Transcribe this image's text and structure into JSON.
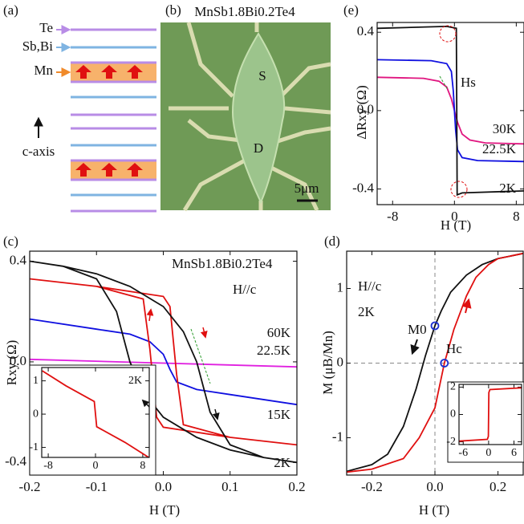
{
  "panel_labels": [
    "(a)",
    "(b)",
    "(c)",
    "(d)",
    "(e)"
  ],
  "schematic": {
    "layers": [
      "Te",
      "Sb,Bi",
      "Mn"
    ],
    "axis_label": "c-axis"
  },
  "micrograph": {
    "title": "MnSb1.8Bi0.2Te4",
    "source": "S",
    "drain": "D",
    "scale_bar": "5μm"
  },
  "chart_data": [
    {
      "type": "line",
      "x_label": "H (T)",
      "y_label": "ΔRxy (Ω)",
      "xlim": [
        -10,
        9
      ],
      "ylim": [
        -0.48,
        0.45
      ],
      "xticks": [
        -8,
        0,
        8
      ],
      "yticks": [
        0.4,
        {
          "value": 0,
          "label": "0.0"
        },
        -0.4
      ],
      "annotations": [
        "Hs"
      ],
      "series": [
        {
          "name": "30K",
          "color": "#e0157f",
          "x": [
            -10,
            -4,
            -2,
            -1,
            -0.4,
            0,
            0.4,
            1,
            2,
            4,
            9
          ],
          "values": [
            0.17,
            0.165,
            0.15,
            0.12,
            0.06,
            0,
            -0.06,
            -0.12,
            -0.15,
            -0.165,
            -0.17
          ]
        },
        {
          "name": "22.5K",
          "color": "#1010e0",
          "x": [
            -10,
            -3,
            -1,
            -0.4,
            -0.15,
            0,
            0.15,
            0.4,
            1,
            3,
            9
          ],
          "values": [
            0.26,
            0.255,
            0.24,
            0.2,
            0.1,
            0,
            -0.1,
            -0.2,
            -0.24,
            -0.255,
            -0.26
          ]
        },
        {
          "name": "2K",
          "color": "#111111",
          "x": [
            -10,
            -1,
            0.25,
            0.35,
            1,
            9
          ],
          "values": [
            0.42,
            0.43,
            0.42,
            -0.43,
            -0.42,
            -0.41
          ]
        }
      ]
    },
    {
      "type": "line",
      "x_label": "H (T)",
      "y_label": "Rxy (Ω)",
      "xlim": [
        -0.2,
        0.2
      ],
      "ylim": [
        -0.45,
        0.44
      ],
      "xticks": [
        -0.2,
        -0.1,
        {
          "value": 0,
          "label": "0.0"
        },
        0.1,
        0.2
      ],
      "yticks": [
        0.4,
        {
          "value": 0,
          "label": "0.0"
        },
        -0.4
      ],
      "annotations": [
        "MnSb1.8Bi0.2Te4",
        "H//c"
      ],
      "series": [
        {
          "name": "60K",
          "color": "#e020e0",
          "x": [
            -0.2,
            0,
            0.2
          ],
          "values": [
            0.01,
            -0.005,
            -0.02
          ]
        },
        {
          "name": "22.5K",
          "color": "#1010e0",
          "x": [
            -0.2,
            -0.1,
            -0.05,
            -0.02,
            0,
            0.01,
            0.02,
            0.05,
            0.1,
            0.2
          ],
          "values": [
            0.17,
            0.13,
            0.11,
            0.08,
            0.03,
            -0.03,
            -0.08,
            -0.11,
            -0.13,
            -0.17
          ]
        },
        {
          "name": "15K",
          "color": "#e01010",
          "x": [
            -0.2,
            -0.1,
            -0.03,
            -0.02,
            -0.01,
            0,
            0.1,
            0.2,
            0.2,
            0.1,
            0.03,
            0.02,
            0.01,
            0,
            -0.1,
            -0.2
          ],
          "values": [
            0.33,
            0.3,
            0.25,
            0.05,
            -0.22,
            -0.26,
            -0.3,
            -0.33,
            -0.33,
            -0.3,
            -0.25,
            -0.05,
            0.22,
            0.26,
            0.3,
            0.33
          ]
        },
        {
          "name": "2K",
          "color": "#111111",
          "x": [
            -0.2,
            -0.15,
            -0.1,
            -0.07,
            -0.05,
            -0.03,
            0,
            0.05,
            0.1,
            0.15,
            0.2,
            0.2,
            0.15,
            0.1,
            0.07,
            0.05,
            0.03,
            0,
            -0.05,
            -0.1,
            -0.15,
            -0.2
          ],
          "values": [
            0.4,
            0.38,
            0.33,
            0.2,
            0.0,
            -0.12,
            -0.22,
            -0.3,
            -0.35,
            -0.38,
            -0.4,
            -0.4,
            -0.38,
            -0.33,
            -0.2,
            0.0,
            0.12,
            0.22,
            0.3,
            0.35,
            0.38,
            0.4
          ]
        }
      ]
    },
    {
      "type": "line",
      "xlim": [
        -9.1,
        9.1
      ],
      "ylim": [
        -1.3,
        1.4
      ],
      "xticks": [
        -8,
        0,
        8
      ],
      "yticks": [
        1,
        0,
        -1
      ],
      "annotations": [
        "2K"
      ],
      "series": [
        {
          "color": "#e01010",
          "x": [
            -9,
            -5,
            -0.2,
            0,
            0.2,
            5,
            9
          ],
          "values": [
            1.3,
            0.85,
            0.38,
            0,
            -0.38,
            -0.85,
            -1.3
          ]
        }
      ]
    },
    {
      "type": "line",
      "x_label": "H (T)",
      "y_label": "M (μB/Mn)",
      "zero_lines": true,
      "xlim": [
        -0.28,
        0.28
      ],
      "ylim": [
        -1.5,
        1.5
      ],
      "xticks": [
        -0.2,
        {
          "value": 0,
          "label": "0.0"
        },
        0.2
      ],
      "yticks": [
        1,
        0,
        -1
      ],
      "annotations": [
        "H//c",
        "2K",
        "M0",
        "Hc"
      ],
      "points_color": "#1a2fd0",
      "points": [
        {
          "x": 0,
          "y": 0.5
        },
        {
          "x": 0.03,
          "y": 0
        }
      ],
      "series": [
        {
          "color": "#111111",
          "x": [
            0.28,
            0.2,
            0.15,
            0.1,
            0.05,
            0.02,
            0,
            -0.03,
            -0.06,
            -0.1,
            -0.15,
            -0.2,
            -0.28
          ],
          "values": [
            1.47,
            1.4,
            1.32,
            1.18,
            0.95,
            0.7,
            0.5,
            0.1,
            -0.35,
            -0.85,
            -1.22,
            -1.36,
            -1.45
          ]
        },
        {
          "color": "#e01010",
          "x": [
            -0.28,
            -0.2,
            -0.1,
            -0.05,
            0,
            0.03,
            0.06,
            0.1,
            0.13,
            0.17,
            0.2,
            0.28
          ],
          "values": [
            -1.46,
            -1.42,
            -1.28,
            -1.0,
            -0.6,
            0,
            0.45,
            0.9,
            1.15,
            1.32,
            1.4,
            1.47
          ]
        }
      ]
    },
    {
      "type": "line",
      "xlim": [
        -7,
        7.8
      ],
      "ylim": [
        -2.2,
        2.2
      ],
      "xticks": [
        -6,
        0,
        6
      ],
      "yticks": [
        2,
        0,
        -2
      ],
      "series": [
        {
          "color": "#e01010",
          "x": [
            -7,
            -0.3,
            -0.05,
            0.05,
            0.3,
            7.8
          ],
          "values": [
            -1.95,
            -1.82,
            -1.6,
            1.6,
            1.82,
            1.95
          ]
        }
      ]
    }
  ]
}
